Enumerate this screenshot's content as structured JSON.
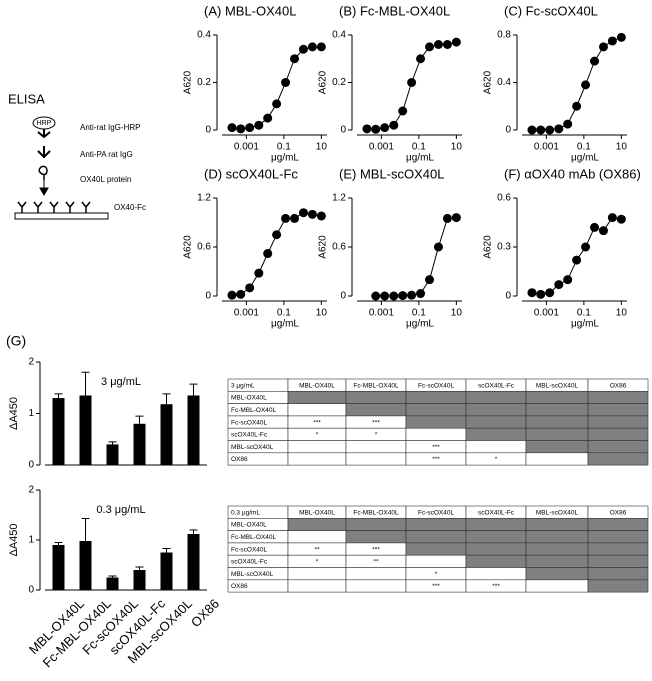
{
  "chart_data": [
    {
      "type": "line",
      "title": "(A) MBL-OX40L",
      "y_label": "A620",
      "x_label": "μg/mL",
      "log_x": true,
      "xlim": [
        5e-05,
        20
      ],
      "xticks": [
        0.001,
        0.1,
        10
      ],
      "ylim": [
        0,
        0.4
      ],
      "yticks": [
        0,
        0.2,
        0.4
      ],
      "color": "#000000",
      "x": [
        0.00017,
        0.0005,
        0.0015,
        0.0046,
        0.0137,
        0.041,
        0.123,
        0.37,
        1.11,
        3.33,
        10
      ],
      "values": [
        0.01,
        0.005,
        0.01,
        0.02,
        0.05,
        0.11,
        0.2,
        0.3,
        0.34,
        0.35,
        0.35
      ]
    },
    {
      "type": "line",
      "title": "(B) Fc-MBL-OX40L",
      "y_label": "A620",
      "x_label": "μg/mL",
      "log_x": true,
      "xlim": [
        5e-05,
        20
      ],
      "xticks": [
        0.001,
        0.1,
        10
      ],
      "ylim": [
        0,
        0.4
      ],
      "yticks": [
        0,
        0.2,
        0.4
      ],
      "color": "#000000",
      "x": [
        0.00017,
        0.0005,
        0.0015,
        0.0046,
        0.0137,
        0.041,
        0.123,
        0.37,
        1.11,
        3.33,
        10
      ],
      "values": [
        0.005,
        0.003,
        0.01,
        0.02,
        0.08,
        0.2,
        0.3,
        0.35,
        0.36,
        0.36,
        0.37
      ]
    },
    {
      "type": "line",
      "title": "(C) Fc-scOX40L",
      "y_label": "A620",
      "x_label": "μg/mL",
      "log_x": true,
      "xlim": [
        5e-05,
        20
      ],
      "xticks": [
        0.001,
        0.1,
        10
      ],
      "ylim": [
        0,
        0.8
      ],
      "yticks": [
        0,
        0.4,
        0.8
      ],
      "color": "#000000",
      "x": [
        0.00017,
        0.0005,
        0.0015,
        0.0046,
        0.0137,
        0.041,
        0.123,
        0.37,
        1.11,
        3.33,
        10
      ],
      "values": [
        0,
        0,
        0,
        0.01,
        0.05,
        0.2,
        0.38,
        0.58,
        0.7,
        0.75,
        0.78
      ]
    },
    {
      "type": "line",
      "title": "(D) scOX40L-Fc",
      "y_label": "A620",
      "x_label": "μg/mL",
      "log_x": true,
      "xlim": [
        5e-05,
        20
      ],
      "xticks": [
        0.001,
        0.1,
        10
      ],
      "ylim": [
        0,
        1.2
      ],
      "yticks": [
        0,
        0.6,
        1.2
      ],
      "color": "#000000",
      "x": [
        0.00017,
        0.0005,
        0.0015,
        0.0046,
        0.0137,
        0.041,
        0.123,
        0.37,
        1.11,
        3.33,
        10
      ],
      "values": [
        0.01,
        0.02,
        0.1,
        0.28,
        0.52,
        0.75,
        0.95,
        0.95,
        1.02,
        1.0,
        0.98
      ]
    },
    {
      "type": "line",
      "title": "(E) MBL-scOX40L",
      "y_label": "A620",
      "x_label": "μg/mL",
      "log_x": true,
      "xlim": [
        5e-05,
        20
      ],
      "xticks": [
        0.001,
        0.1,
        10
      ],
      "ylim": [
        0,
        1.2
      ],
      "yticks": [
        0,
        0.6,
        1.2
      ],
      "color": "#000000",
      "x": [
        0.0005,
        0.0015,
        0.0046,
        0.0137,
        0.041,
        0.123,
        0.37,
        1.11,
        3.33,
        10
      ],
      "values": [
        0,
        0,
        0,
        0.005,
        0.01,
        0.03,
        0.2,
        0.6,
        0.95,
        0.96
      ]
    },
    {
      "type": "line",
      "title": "(F) αOX40 mAb (OX86)",
      "y_label": "A620",
      "x_label": "μg/mL",
      "log_x": true,
      "xlim": [
        5e-05,
        20
      ],
      "xticks": [
        0.001,
        0.1,
        10
      ],
      "ylim": [
        0,
        0.6
      ],
      "yticks": [
        0,
        0.3,
        0.6
      ],
      "color": "#000000",
      "x": [
        0.00017,
        0.0005,
        0.0015,
        0.0046,
        0.0137,
        0.041,
        0.123,
        0.37,
        1.11,
        3.33,
        10
      ],
      "values": [
        0.02,
        0.01,
        0.02,
        0.07,
        0.1,
        0.22,
        0.3,
        0.42,
        0.4,
        0.48,
        0.47
      ]
    },
    {
      "type": "bar",
      "title": "3 μg/mL",
      "y_label": "ΔA450",
      "ylim": [
        0,
        2
      ],
      "yticks": [
        0,
        1,
        2
      ],
      "color": "#000000",
      "values": [
        1.3,
        1.35,
        0.4,
        0.8,
        1.18,
        1.35
      ],
      "errors": [
        0.08,
        0.45,
        0.05,
        0.15,
        0.2,
        0.22
      ]
    },
    {
      "type": "bar",
      "title": "0.3 μg/mL",
      "y_label": "ΔA450",
      "ylim": [
        0,
        2
      ],
      "yticks": [
        0,
        1,
        2
      ],
      "color": "#000000",
      "categories": [
        "MBL-OX40L",
        "Fc-MBL-OX40L",
        "Fc-scOX40L",
        "scOX40L-Fc",
        "MBL-scOX40L",
        "OX86"
      ],
      "values": [
        0.9,
        0.98,
        0.25,
        0.4,
        0.75,
        1.12
      ],
      "errors": [
        0.05,
        0.45,
        0.03,
        0.06,
        0.08,
        0.08
      ]
    }
  ],
  "panel_g_label": "(G)",
  "diagram": {
    "title": "ELISA",
    "hrp": "HRP",
    "labels": [
      "Anti-rat IgG-HRP",
      "Anti-PA rat IgG",
      "OX40L protein",
      "OX40-Fc"
    ]
  },
  "tables": [
    {
      "header": [
        "3 μg/mL",
        "MBL-OX40L",
        "Fc-MBL-OX40L",
        "Fc-scOX40L",
        "scOX40L-Fc",
        "MBL-scOX40L",
        "OX86"
      ],
      "rows": [
        {
          "label": "MBL-OX40L",
          "cells": []
        },
        {
          "label": "Fc-MBL-OX40L",
          "cells": [
            null
          ]
        },
        {
          "label": "Fc-scOX40L",
          "cells": [
            "***",
            "***"
          ]
        },
        {
          "label": "scOX40L-Fc",
          "cells": [
            "*",
            "*",
            null
          ]
        },
        {
          "label": "MBL-scOX40L",
          "cells": [
            null,
            null,
            "***",
            null
          ]
        },
        {
          "label": "OX86",
          "cells": [
            null,
            null,
            "***",
            "*",
            null
          ]
        }
      ]
    },
    {
      "header": [
        "0.3 μg/mL",
        "MBL-OX40L",
        "Fc-MBL-OX40L",
        "Fc-scOX40L",
        "scOX40L-Fc",
        "MBL-scOX40L",
        "OX86"
      ],
      "rows": [
        {
          "label": "MBL-OX40L",
          "cells": []
        },
        {
          "label": "Fc-MBL-OX40L",
          "cells": [
            null
          ]
        },
        {
          "label": "Fc-scOX40L",
          "cells": [
            "**",
            "***"
          ]
        },
        {
          "label": "scOX40L-Fc",
          "cells": [
            "*",
            "**",
            null
          ]
        },
        {
          "label": "MBL-scOX40L",
          "cells": [
            null,
            null,
            "*",
            null
          ]
        },
        {
          "label": "OX86",
          "cells": [
            null,
            null,
            "***",
            "***",
            null
          ]
        }
      ]
    }
  ]
}
